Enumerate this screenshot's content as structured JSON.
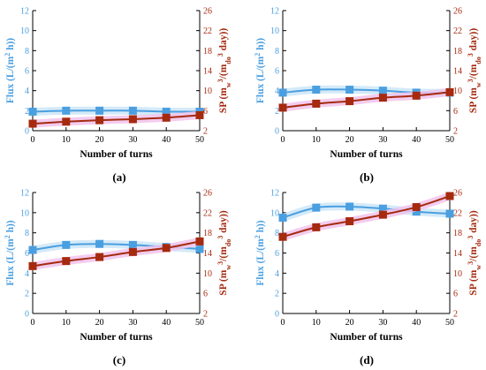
{
  "colors": {
    "flux": "#4a9fe0",
    "sp": "#a52a0f",
    "sp_band": "#f1c3ec",
    "flux_band": "#cde6f8",
    "axis": "#000000"
  },
  "chart_data": [
    {
      "panel_label": "(a)",
      "type": "line",
      "x": [
        0,
        10,
        20,
        30,
        40,
        50
      ],
      "xlabel": "Number of turns",
      "xlim": [
        0,
        50
      ],
      "xticks": [
        "0",
        "10",
        "20",
        "30",
        "40",
        "50"
      ],
      "ylabel_left": "Flux (L/(m² h))",
      "ylim_left": [
        0,
        12
      ],
      "yticks_left": [
        "0",
        "2",
        "4",
        "6",
        "8",
        "10",
        "12"
      ],
      "ylabel_right": "SP (mw³/(mdo³ day))",
      "ylim_right": [
        2,
        26
      ],
      "yticks_right": [
        "2",
        "6",
        "10",
        "14",
        "18",
        "22",
        "26"
      ],
      "series": [
        {
          "values": [
            1.9,
            2.0,
            2.0,
            2.0,
            1.9,
            1.9
          ],
          "axis": "left",
          "marker": "square",
          "color": "#4a9fe0"
        },
        {
          "values": [
            3.4,
            3.8,
            4.1,
            4.3,
            4.6,
            5.1
          ],
          "axis": "right",
          "marker": "square",
          "color": "#a52a0f"
        }
      ]
    },
    {
      "panel_label": "(b)",
      "type": "line",
      "x": [
        0,
        10,
        20,
        30,
        40,
        50
      ],
      "xlabel": "Number of turns",
      "xlim": [
        0,
        50
      ],
      "xticks": [
        "0",
        "10",
        "20",
        "30",
        "40",
        "50"
      ],
      "ylabel_left": "Flux (L/(m² h))",
      "ylim_left": [
        0,
        12
      ],
      "yticks_left": [
        "0",
        "2",
        "4",
        "6",
        "8",
        "10",
        "12"
      ],
      "ylabel_right": "SP (mw³/(mdo³ day))",
      "ylim_right": [
        2,
        26
      ],
      "yticks_right": [
        "2",
        "6",
        "10",
        "14",
        "18",
        "22",
        "26"
      ],
      "series": [
        {
          "values": [
            3.8,
            4.1,
            4.1,
            4.0,
            3.8,
            3.8
          ],
          "axis": "left",
          "marker": "square",
          "color": "#4a9fe0"
        },
        {
          "values": [
            6.6,
            7.4,
            7.9,
            8.6,
            9.0,
            9.7
          ],
          "axis": "right",
          "marker": "square",
          "color": "#a52a0f"
        }
      ]
    },
    {
      "panel_label": "(c)",
      "type": "line",
      "x": [
        0,
        10,
        20,
        30,
        40,
        50
      ],
      "xlabel": "Number of turns",
      "xlim": [
        0,
        50
      ],
      "xticks": [
        "0",
        "10",
        "20",
        "30",
        "40",
        "50"
      ],
      "ylabel_left": "Flux (L/(m² h))",
      "ylim_left": [
        0,
        12
      ],
      "yticks_left": [
        "0",
        "2",
        "4",
        "6",
        "8",
        "10",
        "12"
      ],
      "ylabel_right": "SP (mw³/(mdo³ day))",
      "ylim_right": [
        2,
        26
      ],
      "yticks_right": [
        "2",
        "6",
        "10",
        "14",
        "18",
        "22",
        "26"
      ],
      "series": [
        {
          "values": [
            6.3,
            6.8,
            6.9,
            6.8,
            6.6,
            6.4
          ],
          "axis": "left",
          "marker": "square",
          "color": "#4a9fe0"
        },
        {
          "values": [
            11.4,
            12.4,
            13.2,
            14.2,
            15.0,
            16.3
          ],
          "axis": "right",
          "marker": "square",
          "color": "#a52a0f"
        }
      ]
    },
    {
      "panel_label": "(d)",
      "type": "line",
      "x": [
        0,
        10,
        20,
        30,
        40,
        50
      ],
      "xlabel": "Number of turns",
      "xlim": [
        0,
        50
      ],
      "xticks": [
        "0",
        "10",
        "20",
        "30",
        "40",
        "50"
      ],
      "ylabel_left": "Flux (L/(m² h))",
      "ylim_left": [
        0,
        12
      ],
      "yticks_left": [
        "0",
        "2",
        "4",
        "6",
        "8",
        "10",
        "12"
      ],
      "ylabel_right": "SP (mw³/(mdo³ day))",
      "ylim_right": [
        2,
        26
      ],
      "yticks_right": [
        "2",
        "6",
        "10",
        "14",
        "18",
        "22",
        "26"
      ],
      "series": [
        {
          "values": [
            9.5,
            10.5,
            10.6,
            10.4,
            10.1,
            9.9
          ],
          "axis": "left",
          "marker": "square",
          "color": "#4a9fe0"
        },
        {
          "values": [
            17.2,
            19.1,
            20.3,
            21.6,
            23.1,
            25.3
          ],
          "axis": "right",
          "marker": "square",
          "color": "#a52a0f"
        }
      ]
    }
  ]
}
